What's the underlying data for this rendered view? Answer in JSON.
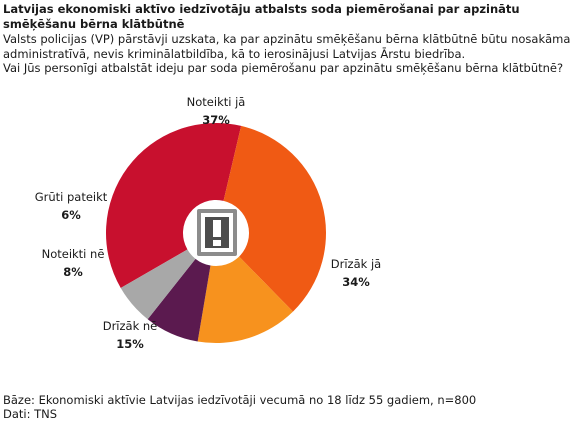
{
  "header": {
    "title": "Latvijas ekonomiski aktīvo iedzīvotāju atbalsts soda piemērošanai par apzinātu smēķēšanu bērna klātbūtnē",
    "intro": "Valsts policijas (VP) pārstāvji uzskata, ka par apzinātu smēķēšanu bērna klātbūtnē būtu nosakāma administratīvā, nevis kriminālatbildība, kā to ierosinājusi Latvijas Ārstu biedrība.",
    "question": "Vai Jūs personīgi atbalstāt ideju par soda piemērošanu par apzinātu smēķēšanu bērna klātbūtnē?"
  },
  "center_icon": "exclamation-icon",
  "chart_data": {
    "type": "pie",
    "style": "donut",
    "series": [
      {
        "name": "Noteikti jā",
        "value": 37,
        "label": "37%",
        "color": "#c8102e"
      },
      {
        "name": "Drīzāk jā",
        "value": 34,
        "label": "34%",
        "color": "#f05a14"
      },
      {
        "name": "Drīzāk nē",
        "value": 15,
        "label": "15%",
        "color": "#f7921e"
      },
      {
        "name": "Noteikti nē",
        "value": 8,
        "label": "8%",
        "color": "#5b1a4f"
      },
      {
        "name": "Grūti pateikt",
        "value": 6,
        "label": "6%",
        "color": "#a8a8a8"
      }
    ]
  },
  "footer": {
    "base": "Bāze: Ekonomiski aktīvie Latvijas iedzīvotāji vecumā no 18 līdz 55 gadiem, n=800",
    "source": "Dati: TNS"
  }
}
